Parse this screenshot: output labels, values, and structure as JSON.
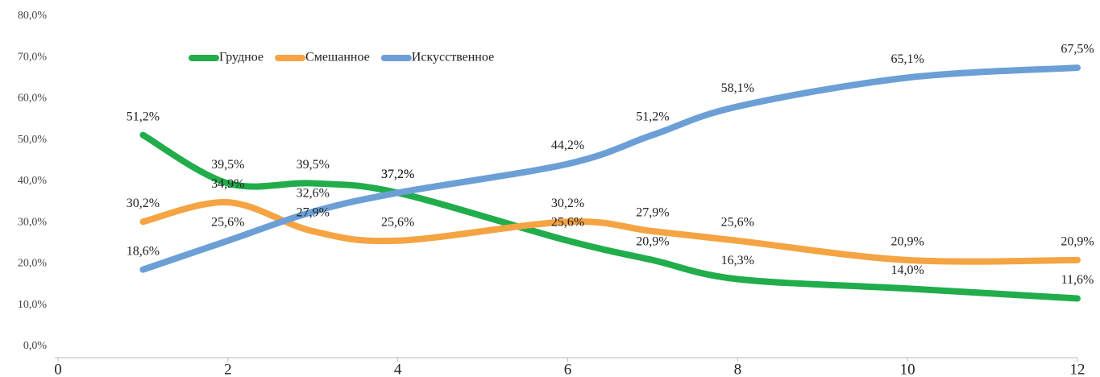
{
  "chart_data": {
    "type": "line",
    "x": [
      1,
      2,
      3,
      4,
      6,
      7,
      8,
      10,
      12
    ],
    "series": [
      {
        "name": "Грудное",
        "color": "#21ad4b",
        "values": [
          51.2,
          39.5,
          39.5,
          37.2,
          25.6,
          20.9,
          16.3,
          14.0,
          11.6
        ],
        "value_labels": [
          "51,2%",
          "39,5%",
          "39,5%",
          "37,2%",
          "25,6%",
          "20,9%",
          "16,3%",
          "14,0%",
          "11,6%"
        ]
      },
      {
        "name": "Смешанное",
        "color": "#f5a443",
        "values": [
          30.2,
          34.9,
          27.9,
          25.6,
          30.2,
          27.9,
          25.6,
          20.9,
          20.9
        ],
        "value_labels": [
          "30,2%",
          "34,9%",
          "27,9%",
          "25,6%",
          "30,2%",
          "27,9%",
          "25,6%",
          "20,9%",
          "20,9%"
        ]
      },
      {
        "name": "Искусственное",
        "color": "#6c9fd6",
        "values": [
          18.6,
          25.6,
          32.6,
          37.2,
          44.2,
          51.2,
          58.1,
          65.1,
          67.5
        ],
        "value_labels": [
          "18,6%",
          "25,6%",
          "32,6%",
          "37,2%",
          "44,2%",
          "51,2%",
          "58,1%",
          "65,1%",
          "67,5%"
        ]
      }
    ],
    "xlim": [
      0,
      12
    ],
    "xticks": [
      0,
      2,
      4,
      6,
      8,
      10,
      12
    ],
    "ylim": [
      0,
      80
    ],
    "yticks": [
      {
        "value": 0,
        "label": "0,0%"
      },
      {
        "value": 10,
        "label": "10,0%"
      },
      {
        "value": 20,
        "label": "20,0%"
      },
      {
        "value": 30,
        "label": "30,0%"
      },
      {
        "value": 40,
        "label": "40,0%"
      },
      {
        "value": 50,
        "label": "50,0%"
      },
      {
        "value": 60,
        "label": "60,0%"
      },
      {
        "value": 70,
        "label": "70,0%"
      },
      {
        "value": 80,
        "label": "80,0%"
      }
    ],
    "grid": false,
    "legend": "top"
  }
}
